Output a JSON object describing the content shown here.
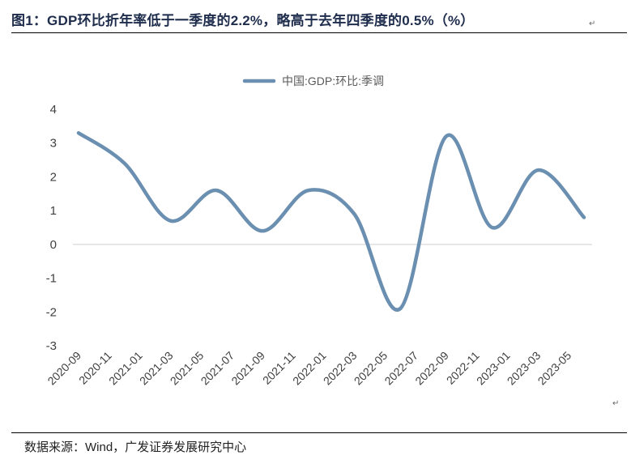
{
  "title": "图1：GDP环比折年率低于一季度的2.2%，略高于去年四季度的0.5%（%）",
  "source": "数据来源：Wind，广发证券发展研究中心",
  "paragraph_mark": "↵",
  "chart_data": {
    "type": "line",
    "legend": {
      "position": "top"
    },
    "series": [
      {
        "name": "中国:GDP:环比:季调",
        "color": "#6a8fb0",
        "x": [
          "2020-09",
          "2020-12",
          "2021-03",
          "2021-06",
          "2021-09",
          "2021-12",
          "2022-03",
          "2022-06",
          "2022-09",
          "2022-12",
          "2023-03",
          "2023-06"
        ],
        "values": [
          3.3,
          2.4,
          0.7,
          1.6,
          0.4,
          1.6,
          0.9,
          -1.9,
          3.2,
          0.5,
          2.2,
          0.8
        ]
      }
    ],
    "x_tick_labels": [
      "2020-09",
      "2020-11",
      "2021-01",
      "2021-03",
      "2021-05",
      "2021-07",
      "2021-09",
      "2021-11",
      "2022-01",
      "2022-03",
      "2022-05",
      "2022-07",
      "2022-09",
      "2022-11",
      "2023-01",
      "2023-03",
      "2023-05"
    ],
    "y_ticks": [
      4,
      3,
      2,
      1,
      0,
      -1,
      -2,
      -3
    ],
    "ylim": [
      -3,
      4
    ],
    "x_range": [
      "2020-09",
      "2023-06"
    ],
    "zero_line": true,
    "grid": false
  }
}
